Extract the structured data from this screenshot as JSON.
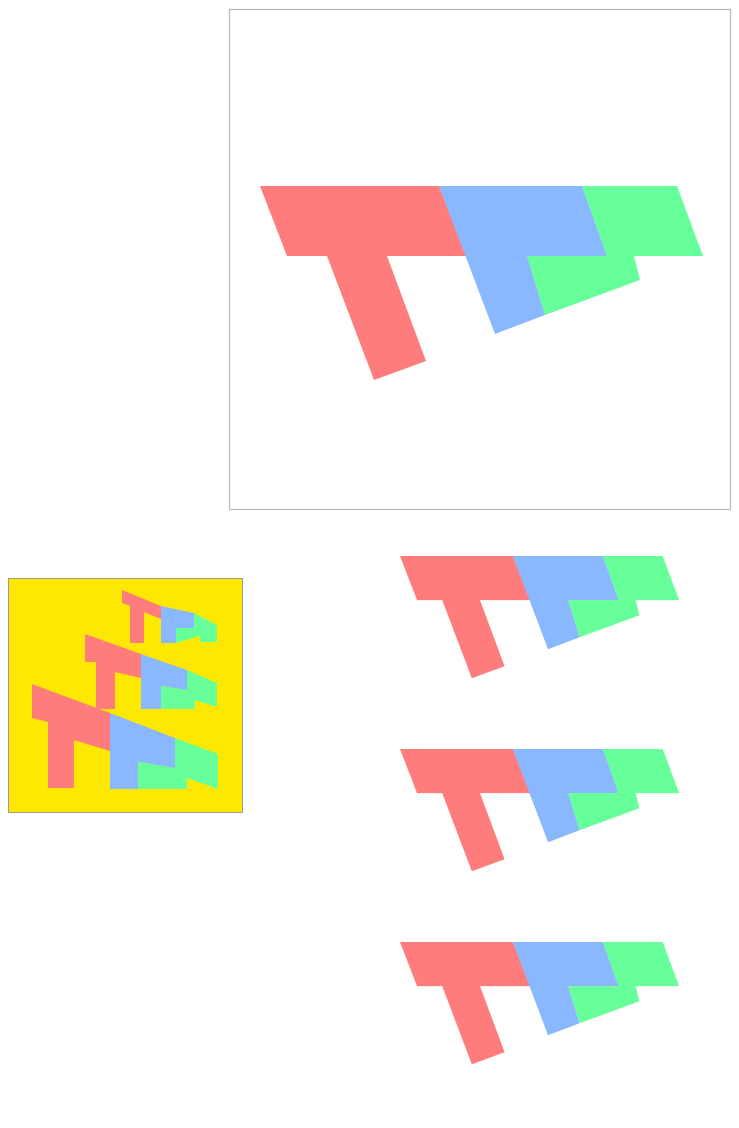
{
  "colors": {
    "red": "#ff7c7c",
    "blue": "#89b8ff",
    "green": "#66ff99",
    "thumbnail_background": "#ffe800",
    "frame": "#b8b8b8"
  },
  "figures": {
    "main": {
      "pieces": [
        "red",
        "blue",
        "green"
      ]
    },
    "thumbnail": {
      "rows": 3,
      "pieces_per_row": [
        "red",
        "blue",
        "green"
      ]
    },
    "option_figures": [
      {
        "pieces": [
          "red",
          "blue",
          "green"
        ]
      },
      {
        "pieces": [
          "red",
          "blue",
          "green"
        ]
      },
      {
        "pieces": [
          "red",
          "blue",
          "green"
        ]
      }
    ]
  }
}
